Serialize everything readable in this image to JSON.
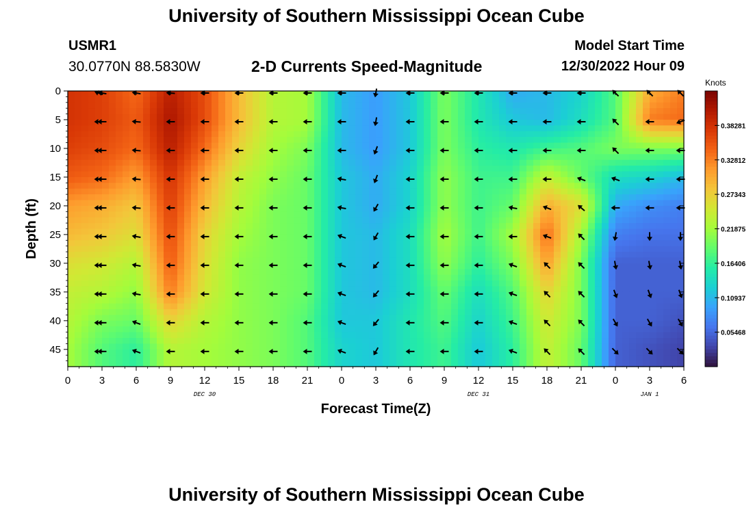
{
  "header": {
    "title": "University of Southern Mississippi Ocean Cube",
    "station": "USMR1",
    "coords": "30.0770N  88.5830W",
    "subtitle": "2-D Currents Speed-Magnitude",
    "model_start_label": "Model Start Time",
    "model_start_value": "12/30/2022 Hour 09"
  },
  "footer": {
    "title": "University of Southern Mississippi Ocean Cube"
  },
  "chart_data": {
    "type": "heatmap",
    "xlabel": "Forecast Time(Z)",
    "ylabel": "Depth (ft)",
    "x_ticks": [
      "0",
      "3",
      "6",
      "9",
      "12",
      "15",
      "18",
      "21",
      "0",
      "3",
      "6",
      "9",
      "12",
      "15",
      "18",
      "21",
      "0",
      "3",
      "6"
    ],
    "x_range_hours": [
      0,
      54
    ],
    "date_labels": [
      {
        "text": "DEC 30",
        "at_hour": 12
      },
      {
        "text": "DEC 31",
        "at_hour": 36
      },
      {
        "text": "JAN 1",
        "at_hour": 51
      }
    ],
    "y_ticks": [
      0,
      5,
      10,
      15,
      20,
      25,
      30,
      35,
      40,
      45
    ],
    "ylim": [
      0,
      48
    ],
    "y_inverted": true,
    "colorbar": {
      "label": "Knots",
      "ticks": [
        "0.38281",
        "0.32812",
        "0.27343",
        "0.21875",
        "0.16406",
        "0.10937",
        "0.05468"
      ],
      "range": [
        0,
        0.4375
      ],
      "colors": [
        "#30123b",
        "#4145ab",
        "#4675ed",
        "#39a2fc",
        "#1bcfd4",
        "#24eca6",
        "#61fc6c",
        "#a4fc3b",
        "#d1e834",
        "#f3c63a",
        "#fe9b2d",
        "#f36315",
        "#d93806",
        "#b11901",
        "#7a0403"
      ]
    },
    "speed_grid": {
      "times": [
        0,
        3,
        6,
        9,
        12,
        15,
        18,
        21,
        24,
        27,
        30,
        33,
        36,
        39,
        42,
        45,
        48,
        51,
        54
      ],
      "depths": [
        0,
        5,
        10,
        15,
        20,
        25,
        30,
        35,
        40,
        45
      ],
      "values": [
        [
          0.38,
          0.37,
          0.34,
          0.4,
          0.36,
          0.29,
          0.23,
          0.22,
          0.11,
          0.09,
          0.12,
          0.2,
          0.15,
          0.1,
          0.11,
          0.13,
          0.18,
          0.3,
          0.33
        ],
        [
          0.38,
          0.37,
          0.35,
          0.41,
          0.36,
          0.29,
          0.23,
          0.22,
          0.11,
          0.09,
          0.12,
          0.2,
          0.15,
          0.12,
          0.11,
          0.14,
          0.18,
          0.33,
          0.34
        ],
        [
          0.37,
          0.36,
          0.34,
          0.4,
          0.34,
          0.27,
          0.22,
          0.2,
          0.11,
          0.09,
          0.12,
          0.2,
          0.16,
          0.15,
          0.17,
          0.18,
          0.2,
          0.2,
          0.2
        ],
        [
          0.35,
          0.34,
          0.31,
          0.38,
          0.31,
          0.24,
          0.21,
          0.19,
          0.12,
          0.1,
          0.13,
          0.21,
          0.17,
          0.17,
          0.24,
          0.19,
          0.14,
          0.13,
          0.11
        ],
        [
          0.31,
          0.3,
          0.28,
          0.37,
          0.29,
          0.23,
          0.2,
          0.19,
          0.12,
          0.1,
          0.13,
          0.21,
          0.17,
          0.19,
          0.3,
          0.26,
          0.1,
          0.08,
          0.07
        ],
        [
          0.29,
          0.28,
          0.26,
          0.36,
          0.27,
          0.22,
          0.2,
          0.19,
          0.12,
          0.11,
          0.14,
          0.22,
          0.17,
          0.22,
          0.34,
          0.22,
          0.07,
          0.06,
          0.06
        ],
        [
          0.26,
          0.25,
          0.23,
          0.35,
          0.26,
          0.21,
          0.2,
          0.19,
          0.12,
          0.11,
          0.14,
          0.21,
          0.16,
          0.2,
          0.31,
          0.2,
          0.05,
          0.05,
          0.05
        ],
        [
          0.24,
          0.23,
          0.21,
          0.33,
          0.25,
          0.21,
          0.2,
          0.19,
          0.12,
          0.11,
          0.14,
          0.19,
          0.14,
          0.18,
          0.27,
          0.2,
          0.05,
          0.05,
          0.05
        ],
        [
          0.23,
          0.2,
          0.19,
          0.27,
          0.23,
          0.21,
          0.2,
          0.18,
          0.12,
          0.12,
          0.15,
          0.18,
          0.13,
          0.17,
          0.25,
          0.2,
          0.05,
          0.05,
          0.04
        ],
        [
          0.22,
          0.18,
          0.16,
          0.23,
          0.22,
          0.21,
          0.2,
          0.18,
          0.13,
          0.12,
          0.15,
          0.17,
          0.12,
          0.16,
          0.24,
          0.19,
          0.05,
          0.04,
          0.03
        ]
      ]
    },
    "vectors_direction_deg": {
      "note_units": "degrees, screen orientation: 0 = right, 90 = down",
      "values": [
        [
          200,
          190,
          190,
          185,
          180,
          180,
          180,
          180,
          180,
          100,
          180,
          180,
          180,
          180,
          180,
          180,
          225,
          225,
          225
        ],
        [
          180,
          180,
          185,
          180,
          180,
          180,
          180,
          180,
          180,
          100,
          180,
          180,
          180,
          180,
          180,
          180,
          225,
          180,
          160
        ],
        [
          180,
          180,
          185,
          180,
          180,
          180,
          180,
          180,
          180,
          110,
          180,
          180,
          180,
          180,
          180,
          180,
          225,
          180,
          180
        ],
        [
          180,
          180,
          185,
          180,
          180,
          180,
          180,
          180,
          190,
          110,
          180,
          180,
          180,
          180,
          180,
          200,
          200,
          180,
          180
        ],
        [
          180,
          180,
          185,
          180,
          180,
          180,
          180,
          180,
          190,
          120,
          180,
          180,
          180,
          190,
          200,
          220,
          180,
          180,
          180
        ],
        [
          180,
          180,
          190,
          180,
          180,
          180,
          180,
          180,
          200,
          120,
          180,
          180,
          180,
          180,
          200,
          225,
          100,
          90,
          90
        ],
        [
          180,
          180,
          190,
          180,
          180,
          180,
          180,
          180,
          200,
          130,
          180,
          180,
          180,
          200,
          225,
          225,
          80,
          80,
          80
        ],
        [
          180,
          180,
          190,
          180,
          180,
          180,
          180,
          180,
          200,
          130,
          180,
          180,
          180,
          200,
          225,
          225,
          70,
          70,
          70
        ],
        [
          180,
          180,
          200,
          180,
          180,
          180,
          180,
          180,
          200,
          130,
          180,
          180,
          180,
          200,
          225,
          225,
          60,
          60,
          60
        ],
        [
          180,
          180,
          200,
          180,
          180,
          180,
          180,
          180,
          200,
          120,
          180,
          180,
          180,
          200,
          225,
          225,
          45,
          45,
          45
        ]
      ]
    }
  }
}
